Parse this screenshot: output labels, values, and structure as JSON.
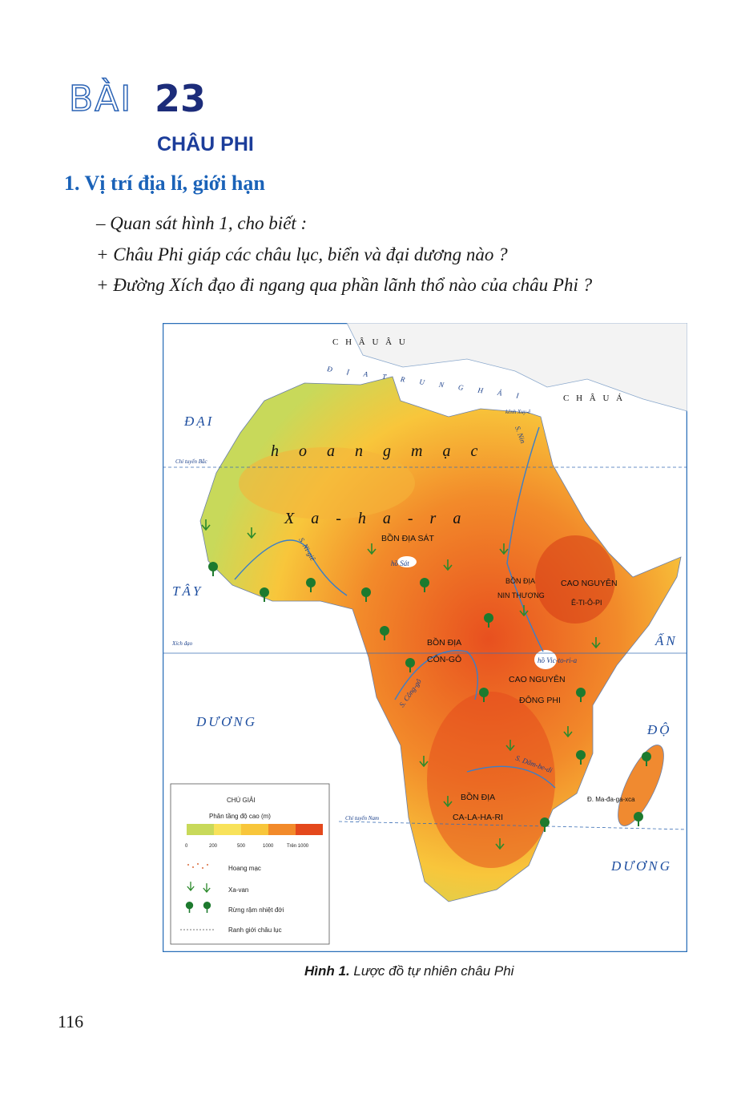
{
  "header": {
    "lesson_word": "BÀI",
    "lesson_number": "23",
    "title": "CHÂU PHI"
  },
  "section": {
    "heading": "1. Vị trí địa lí, giới hạn",
    "questions": [
      "– Quan sát hình 1, cho biết :",
      "+ Châu Phi giáp các châu lục, biển và đại dương nào ?",
      "+ Đường Xích đạo đi ngang qua phần lãnh thổ nào của châu Phi ?"
    ]
  },
  "map": {
    "labels": {
      "europe": "C H Â U   Â U",
      "med_sea": "Đ Ị A   T R U N G   H Ả I",
      "asia": "C H Â U   Á",
      "suez": "kênh Xuy-ê",
      "atlantic_1": "ĐẠI",
      "atlantic_2": "TÂY",
      "atlantic_3": "DƯƠNG",
      "tropic_cancer": "Chí tuyến Bắc",
      "equator": "Xích đạo",
      "tropic_capricorn": "Chí tuyến Nam",
      "sahara_1": "h o a n g   m ạ c",
      "sahara_2": "X a - h a - r a",
      "chad_basin": "BỒN ĐỊA SÁT",
      "lake_chad": "hồ Sát",
      "niger": "S. Ni-giê",
      "nile": "S. Nin",
      "upper_nile_1": "BỒN ĐỊA",
      "upper_nile_2": "NIN THƯỢNG",
      "ethiopia_1": "CAO NGUYÊN",
      "ethiopia_2": "Ê-TI-Ô-PI",
      "indian_1": "ẤN",
      "indian_2": "ĐỘ",
      "indian_3": "DƯƠNG",
      "victoria": "hồ Vic-to-ri-a",
      "east_africa_1": "CAO NGUYÊN",
      "east_africa_2": "ĐÔNG PHI",
      "congo_basin_1": "BỒN ĐỊA",
      "congo_basin_2": "CÔN-GÔ",
      "congo": "S. Công-gô",
      "zambezi": "S. Dăm-be-di",
      "kalahari_1": "BỒN ĐỊA",
      "kalahari_2": "CA-LA-HA-RI",
      "madagascar": "Đ. Ma-đa-ga-xca"
    },
    "legend": {
      "title": "CHÚ GIẢI",
      "scale_title": "Phân tầng độ cao (m)",
      "scale_labels": [
        "0",
        "200",
        "500",
        "1000",
        "Trên 1000"
      ],
      "items": [
        "Hoang mạc",
        "Xa-van",
        "Rừng rậm nhiệt đới",
        "Ranh giới châu lục"
      ]
    }
  },
  "figure_caption": {
    "prefix": "Hình 1.",
    "text": "Lược đồ tự nhiên châu Phi"
  },
  "page_number": "116"
}
